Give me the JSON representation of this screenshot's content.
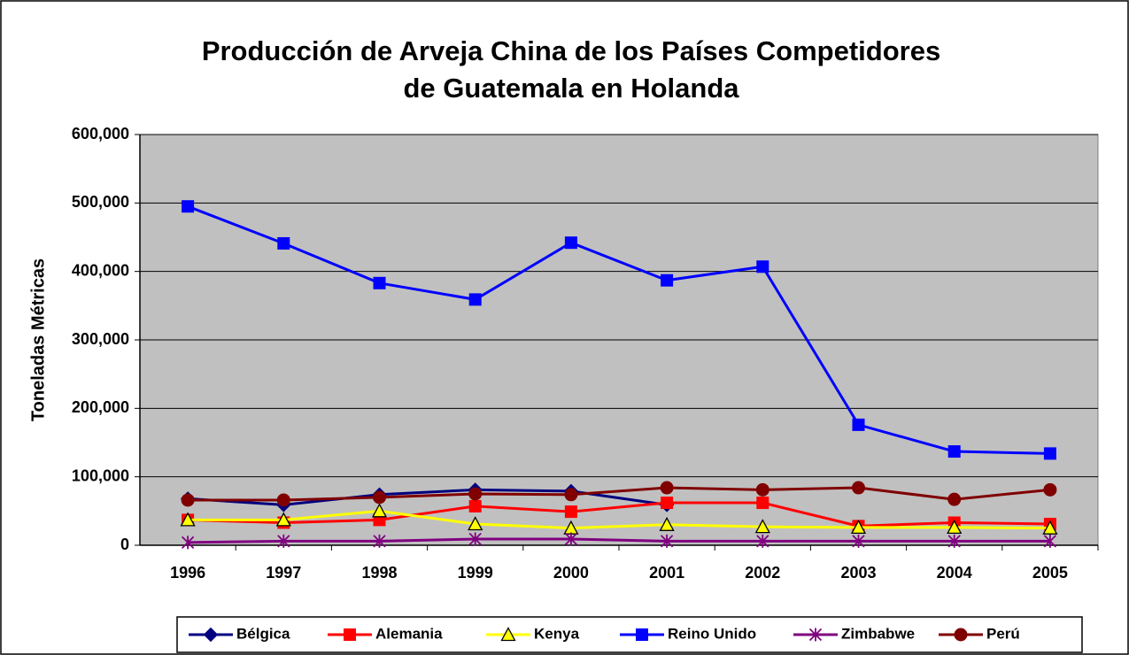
{
  "chart_data": {
    "type": "line",
    "title": [
      "Producción de Arveja China de los Países Competidores",
      "de Guatemala en Holanda"
    ],
    "y_label": "Toneladas Métricas",
    "categories": [
      "1996",
      "1997",
      "1998",
      "1999",
      "2000",
      "2001",
      "2002",
      "2003",
      "2004",
      "2005"
    ],
    "series": [
      {
        "name": "Bélgica",
        "color": "#000080",
        "marker": "diamond",
        "values": [
          68000,
          59000,
          74000,
          81000,
          79000,
          59000,
          null,
          null,
          null,
          null
        ]
      },
      {
        "name": "Alemania",
        "color": "#ff0000",
        "marker": "square",
        "values": [
          37000,
          33000,
          37000,
          57000,
          49000,
          62000,
          62000,
          28000,
          33000,
          31000
        ]
      },
      {
        "name": "Kenya",
        "color": "#ffff00",
        "marker": "triangle",
        "values": [
          37000,
          37000,
          50000,
          31000,
          25000,
          30000,
          27000,
          26000,
          26000,
          25000
        ]
      },
      {
        "name": "Reino Unido",
        "color": "#0000ff",
        "marker": "square",
        "values": [
          495000,
          441000,
          383000,
          359000,
          442000,
          387000,
          407000,
          176000,
          137000,
          134000
        ]
      },
      {
        "name": "Zimbabwe",
        "color": "#800080",
        "marker": "star",
        "values": [
          4000,
          6000,
          6000,
          9000,
          9000,
          6000,
          6000,
          6000,
          6000,
          6000
        ]
      },
      {
        "name": "Perú",
        "color": "#800000",
        "marker": "circle",
        "values": [
          66000,
          66000,
          70000,
          75000,
          74000,
          84000,
          81000,
          84000,
          67000,
          81000
        ]
      }
    ],
    "ylim": [
      0,
      600000
    ],
    "yticks": [
      0,
      {
        "value": 100000,
        "label": "100,000"
      },
      {
        "value": 200000,
        "label": "200,000"
      },
      {
        "value": 300000,
        "label": "300,000"
      },
      {
        "value": 400000,
        "label": "400,000"
      },
      {
        "value": 500000,
        "label": "500,000"
      },
      {
        "value": 600000,
        "label": "600,000"
      }
    ],
    "grid": true,
    "legend": "bottom",
    "plot_background": "#c0c0c0"
  }
}
